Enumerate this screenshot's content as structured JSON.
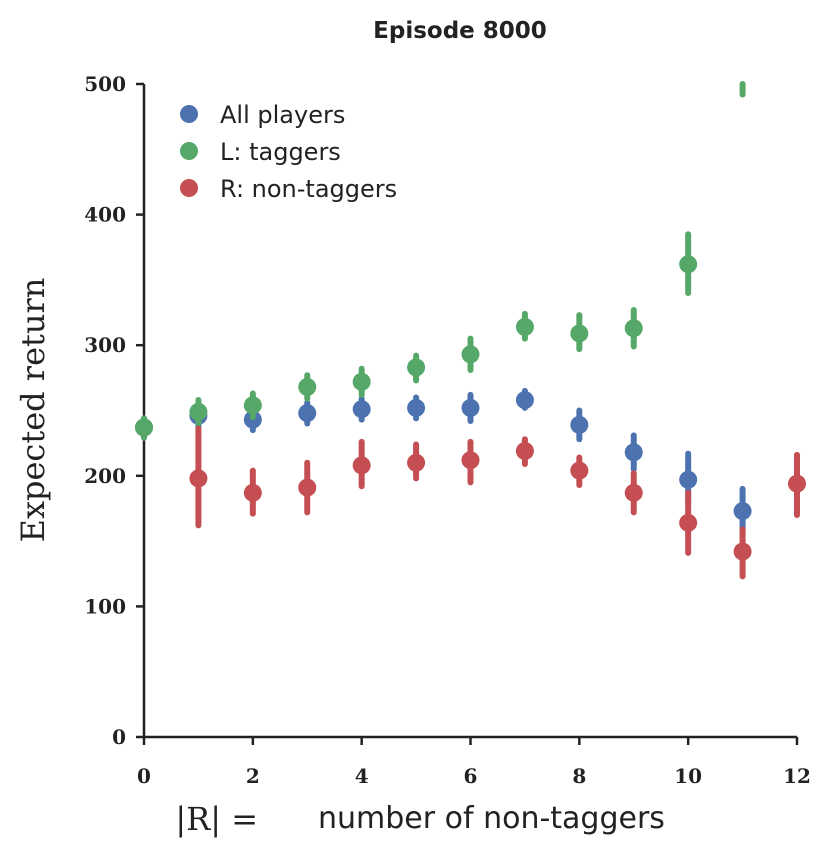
{
  "chart_data": {
    "type": "scatter",
    "title": "Episode 8000",
    "ylabel": "Expected return",
    "xlabel": {
      "math": "|R| =",
      "text": "number of non-taggers"
    },
    "xlim": [
      0,
      12
    ],
    "ylim": [
      0,
      500
    ],
    "xticks": [
      0,
      2,
      4,
      6,
      8,
      10,
      12
    ],
    "yticks": [
      0,
      100,
      200,
      300,
      400,
      500
    ],
    "grid": false,
    "legend_position": "top-left",
    "series": [
      {
        "name": "All players",
        "color": "#4c72b0",
        "x": [
          0,
          1,
          2,
          3,
          4,
          5,
          6,
          7,
          8,
          9,
          10,
          11
        ],
        "y": [
          237,
          246,
          243,
          248,
          251,
          252,
          252,
          258,
          239,
          218,
          197,
          173
        ],
        "err_low": [
          230,
          237,
          235,
          240,
          243,
          244,
          242,
          252,
          228,
          205,
          180,
          157
        ],
        "err_high": [
          244,
          255,
          251,
          256,
          259,
          260,
          262,
          265,
          250,
          231,
          217,
          190
        ]
      },
      {
        "name": "L: taggers",
        "color": "#55a868",
        "x": [
          0,
          1,
          2,
          3,
          4,
          5,
          6,
          7,
          8,
          9,
          10,
          11
        ],
        "y": [
          237,
          249,
          254,
          268,
          272,
          283,
          293,
          314,
          309,
          313,
          362,
          500
        ],
        "err_low": [
          229,
          240,
          245,
          259,
          262,
          273,
          281,
          305,
          297,
          299,
          340,
          492
        ],
        "err_high": [
          244,
          258,
          263,
          277,
          282,
          292,
          305,
          324,
          323,
          327,
          385,
          500
        ]
      },
      {
        "name": "R: non-taggers",
        "color": "#c44e52",
        "x": [
          1,
          2,
          3,
          4,
          5,
          6,
          7,
          8,
          9,
          10,
          11,
          12
        ],
        "y": [
          198,
          187,
          191,
          208,
          210,
          212,
          219,
          204,
          187,
          164,
          142,
          194
        ],
        "err_low": [
          162,
          171,
          172,
          192,
          198,
          195,
          209,
          193,
          172,
          141,
          123,
          170
        ],
        "err_high": [
          236,
          204,
          210,
          226,
          224,
          226,
          228,
          214,
          202,
          187,
          159,
          216
        ]
      }
    ]
  }
}
